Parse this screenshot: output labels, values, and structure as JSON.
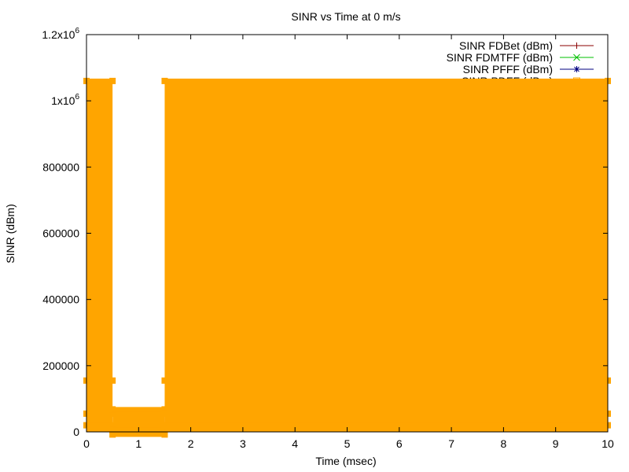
{
  "chart_data": {
    "type": "line",
    "title": "SINR vs Time at 0 m/s",
    "xlabel": "Time (msec)",
    "ylabel": "SINR (dBm)",
    "xlim": [
      0,
      10
    ],
    "ylim": [
      0,
      1200000
    ],
    "x_ticks": [
      0,
      1,
      2,
      3,
      4,
      5,
      6,
      7,
      8,
      9,
      10
    ],
    "y_ticks": [
      {
        "value": 0,
        "label": "0"
      },
      {
        "value": 200000,
        "label": "200000"
      },
      {
        "value": 400000,
        "label": "400000"
      },
      {
        "value": 600000,
        "label": "600000"
      },
      {
        "value": 800000,
        "label": "800000"
      },
      {
        "value": 1000000,
        "label": "1x10",
        "exp": "6"
      },
      {
        "value": 1200000,
        "label": "1.2x10",
        "exp": "6"
      }
    ],
    "grid": false,
    "legend_position": "top-right",
    "series": [
      {
        "name": "SINR FDBet (dBm)",
        "color": "#8b0000",
        "marker": "plus",
        "points": []
      },
      {
        "name": "SINR FDMTFF (dBm)",
        "color": "#00c000",
        "marker": "cross",
        "points": []
      },
      {
        "name": "SINR PFFF (dBm)",
        "color": "#000080",
        "marker": "star",
        "points": []
      },
      {
        "name": "SINR PDFF (dBm)",
        "color": "#ffa500",
        "marker": "square",
        "segments": [
          {
            "x0": 0.0,
            "x1": 0.5,
            "ymin": 0,
            "ymax": 1060000,
            "markers": [
              1060000,
              155000,
              55000,
              20000
            ]
          },
          {
            "x0": 0.5,
            "x1": 1.5,
            "ymin": -10000,
            "ymax": 68000,
            "markers": [
              68000,
              5000,
              -8000
            ]
          },
          {
            "x0": 1.5,
            "x1": 10.0,
            "ymin": 0,
            "ymax": 1060000,
            "markers": [
              1060000,
              155000,
              55000,
              20000
            ]
          }
        ]
      }
    ]
  }
}
